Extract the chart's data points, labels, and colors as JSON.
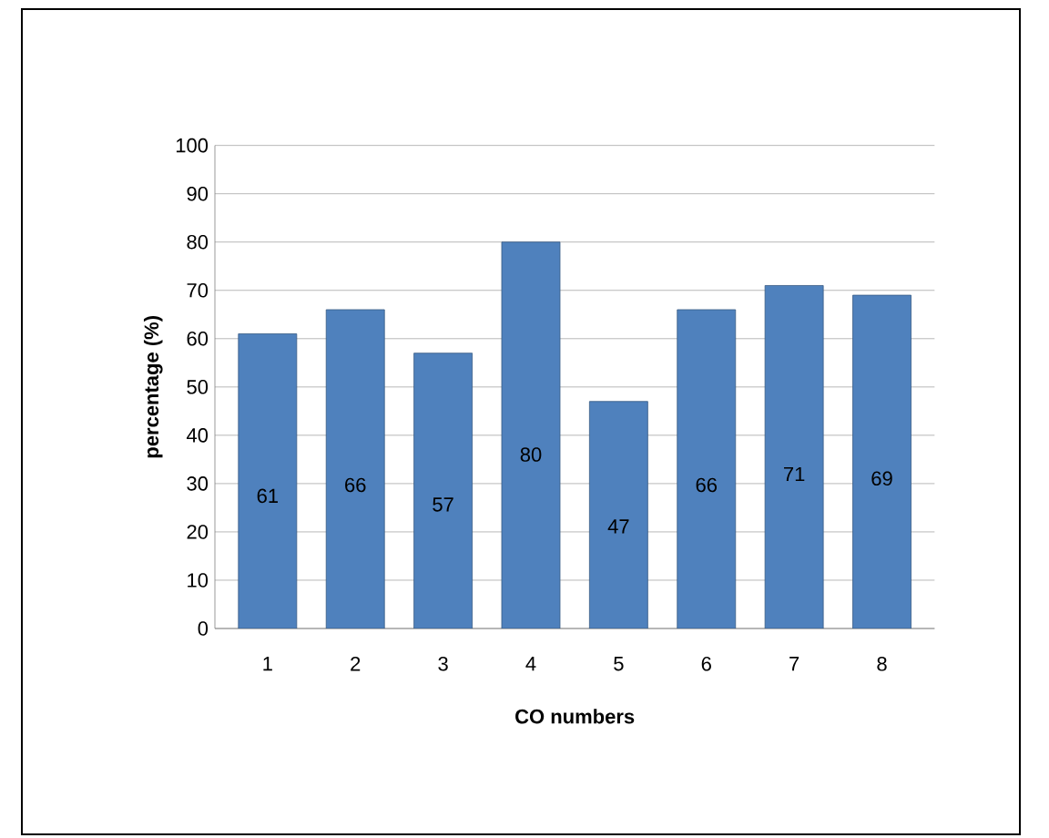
{
  "chart_data": {
    "type": "bar",
    "xlabel": "CO numbers",
    "ylabel": "percentage (%)",
    "categories": [
      "1",
      "2",
      "3",
      "4",
      "5",
      "6",
      "7",
      "8"
    ],
    "values": [
      61,
      66,
      57,
      80,
      47,
      66,
      71,
      69
    ],
    "color": "#4f81bd",
    "data_labels": true,
    "grid": "y",
    "ylim": [
      0,
      100
    ],
    "yticks": [
      0,
      10,
      20,
      30,
      40,
      50,
      60,
      70,
      80,
      90,
      100
    ]
  }
}
